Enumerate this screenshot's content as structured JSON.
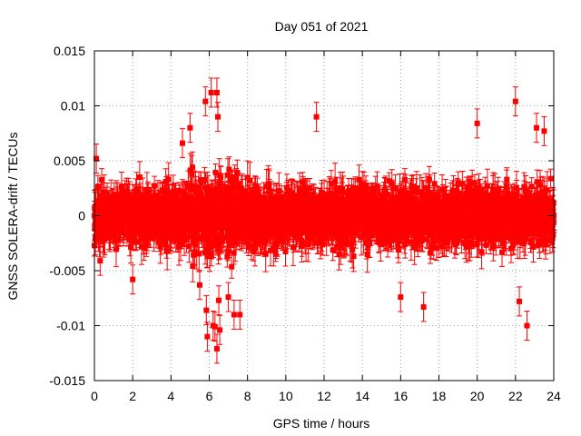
{
  "chart_data": {
    "type": "scatter",
    "title": "Day 051 of 2021",
    "xlabel": "GPS time / hours",
    "ylabel": "GNSS SOLERA-drift / TECUs",
    "xlim": [
      0,
      24
    ],
    "ylim": [
      -0.015,
      0.015
    ],
    "xticks": [
      "0",
      "2",
      "4",
      "6",
      "8",
      "10",
      "12",
      "14",
      "16",
      "18",
      "20",
      "22",
      "24"
    ],
    "yticks": [
      "-0.015",
      "-0.01",
      "-0.005",
      "0",
      "0.005",
      "0.01",
      "0.015"
    ],
    "grid": true,
    "colors": {
      "series": "#ff0000",
      "grid": "#a0a0a0",
      "axis": "#000000"
    },
    "series": [
      {
        "marker": "square",
        "error_bars": true,
        "sample_interval_hours": 0.0083,
        "typical_error": 0.0012,
        "typical_spread": 0.0022,
        "notable_points": [
          {
            "x": 0.0,
            "y": 0.0
          },
          {
            "x": 0.1,
            "y": 0.0052
          },
          {
            "x": 0.3,
            "y": -0.0041
          },
          {
            "x": 2.0,
            "y": -0.0058
          },
          {
            "x": 4.6,
            "y": 0.0066
          },
          {
            "x": 5.0,
            "y": 0.008
          },
          {
            "x": 5.5,
            "y": -0.0063
          },
          {
            "x": 5.8,
            "y": 0.0104
          },
          {
            "x": 5.85,
            "y": -0.0086
          },
          {
            "x": 5.9,
            "y": -0.011
          },
          {
            "x": 6.1,
            "y": 0.0112
          },
          {
            "x": 6.2,
            "y": -0.01
          },
          {
            "x": 6.3,
            "y": -0.0101
          },
          {
            "x": 6.4,
            "y": 0.0112
          },
          {
            "x": 6.4,
            "y": -0.0121
          },
          {
            "x": 6.45,
            "y": 0.009
          },
          {
            "x": 6.5,
            "y": -0.0077
          },
          {
            "x": 6.55,
            "y": -0.0104
          },
          {
            "x": 7.0,
            "y": -0.0074
          },
          {
            "x": 7.3,
            "y": -0.009
          },
          {
            "x": 7.6,
            "y": -0.009
          },
          {
            "x": 11.6,
            "y": 0.009
          },
          {
            "x": 16.0,
            "y": -0.0074
          },
          {
            "x": 17.2,
            "y": -0.0083
          },
          {
            "x": 20.0,
            "y": 0.0084
          },
          {
            "x": 22.0,
            "y": 0.0104
          },
          {
            "x": 22.2,
            "y": -0.0078
          },
          {
            "x": 22.6,
            "y": -0.01
          },
          {
            "x": 23.1,
            "y": 0.008
          },
          {
            "x": 23.5,
            "y": 0.0077
          },
          {
            "x": 24.0,
            "y": 0.0
          }
        ]
      }
    ]
  }
}
